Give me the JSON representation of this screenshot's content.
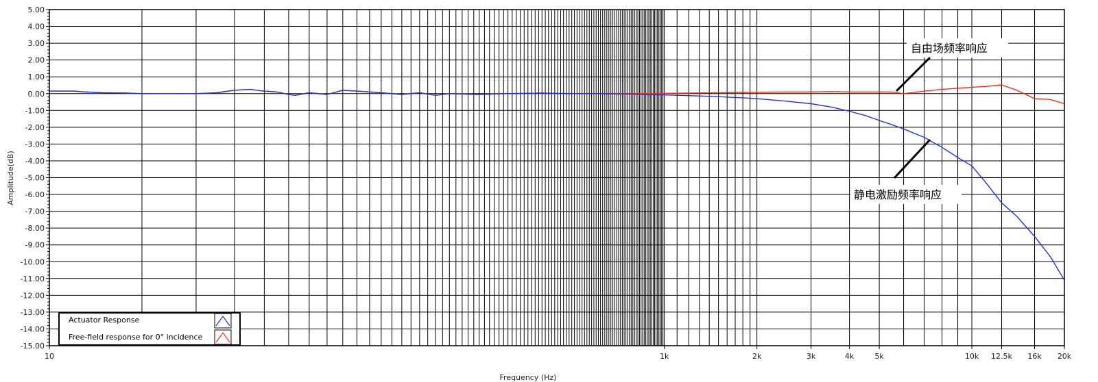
{
  "chart_data": {
    "type": "line",
    "xlabel": "Frequency (Hz)",
    "ylabel": "Amplitude(dB)",
    "x_scale": "log",
    "xlim": [
      10,
      20000
    ],
    "ylim": [
      -15,
      5
    ],
    "grid": true,
    "x_tick_labels": [
      {
        "value": 10,
        "label": "10"
      },
      {
        "value": 1000,
        "label": "1k"
      },
      {
        "value": 2000,
        "label": "2k"
      },
      {
        "value": 3000,
        "label": "3k"
      },
      {
        "value": 4000,
        "label": "4k"
      },
      {
        "value": 5000,
        "label": "5k"
      },
      {
        "value": 10000,
        "label": "10k"
      },
      {
        "value": 12500,
        "label": "12.5k"
      },
      {
        "value": 16000,
        "label": "16k"
      },
      {
        "value": 20000,
        "label": "20k"
      }
    ],
    "y_tick_labels": [
      "5.00",
      "4.00",
      "3.00",
      "2.00",
      "1.00",
      "0.00",
      "-1.00",
      "-2.00",
      "-3.00",
      "-4.00",
      "-5.00",
      "-6.00",
      "-7.00",
      "-8.00",
      "-9.00",
      "-10.00",
      "-11.00",
      "-12.00",
      "-13.00",
      "-14.00",
      "-15.00"
    ],
    "legend_placement": "bottom-left",
    "series": [
      {
        "name": "Actuator Response",
        "color": "#1f2fe8",
        "x": [
          10,
          12,
          13,
          15,
          18,
          20,
          25,
          30,
          35,
          40,
          45,
          50,
          55,
          60,
          63,
          70,
          80,
          90,
          100,
          110,
          120,
          140,
          160,
          180,
          200,
          250,
          300,
          400,
          500,
          600,
          800,
          1000,
          1200,
          1500,
          1800,
          2000,
          2500,
          3000,
          3500,
          4000,
          4500,
          5000,
          5500,
          6000,
          7000,
          8000,
          9000,
          10000,
          11000,
          12500,
          14000,
          16000,
          18000,
          20000
        ],
        "y": [
          0.15,
          0.15,
          0.1,
          0.05,
          0.03,
          0,
          0,
          0,
          0.05,
          0.2,
          0.25,
          0.15,
          0.1,
          -0.05,
          -0.1,
          0.05,
          -0.05,
          0.2,
          0.15,
          0.1,
          0.05,
          -0.05,
          0.05,
          -0.1,
          0,
          -0.05,
          0,
          0.03,
          0,
          0,
          -0.03,
          -0.08,
          -0.12,
          -0.18,
          -0.25,
          -0.3,
          -0.45,
          -0.6,
          -0.8,
          -1.05,
          -1.3,
          -1.6,
          -1.85,
          -2.1,
          -2.6,
          -3.2,
          -3.8,
          -4.3,
          -5.2,
          -6.5,
          -7.3,
          -8.5,
          -9.7,
          -11.1
        ]
      },
      {
        "name": "Free-field response for 0° incidence",
        "color": "#ff2a10",
        "x": [
          10,
          12,
          13,
          15,
          18,
          20,
          25,
          30,
          35,
          40,
          45,
          50,
          55,
          60,
          63,
          70,
          80,
          90,
          100,
          110,
          120,
          140,
          160,
          180,
          200,
          250,
          300,
          400,
          500,
          600,
          800,
          1000,
          1200,
          1500,
          1800,
          2000,
          2500,
          3000,
          3500,
          4000,
          4500,
          5000,
          5500,
          6000,
          7000,
          8000,
          9000,
          10000,
          11000,
          12500,
          14000,
          16000,
          18000,
          20000
        ],
        "y": [
          0.15,
          0.15,
          0.1,
          0.05,
          0.03,
          0,
          0,
          0,
          0.05,
          0.2,
          0.25,
          0.15,
          0.1,
          -0.05,
          -0.1,
          0.05,
          -0.05,
          0.2,
          0.15,
          0.1,
          0.05,
          -0.05,
          0.05,
          -0.1,
          0,
          -0.05,
          0,
          0.03,
          0,
          0,
          0,
          0.02,
          0.03,
          0.05,
          0.07,
          0.08,
          0.1,
          0.1,
          0.12,
          0.1,
          0.1,
          0.1,
          0.1,
          0.0,
          0.15,
          0.25,
          0.32,
          0.38,
          0.42,
          0.52,
          0.2,
          -0.3,
          -0.35,
          -0.6
        ]
      }
    ],
    "annotations": [
      {
        "text": "自由场频率响应",
        "points_to": "Free-field response for 0° incidence"
      },
      {
        "text": "静电激励频率响应",
        "points_to": "Actuator Response"
      }
    ]
  }
}
